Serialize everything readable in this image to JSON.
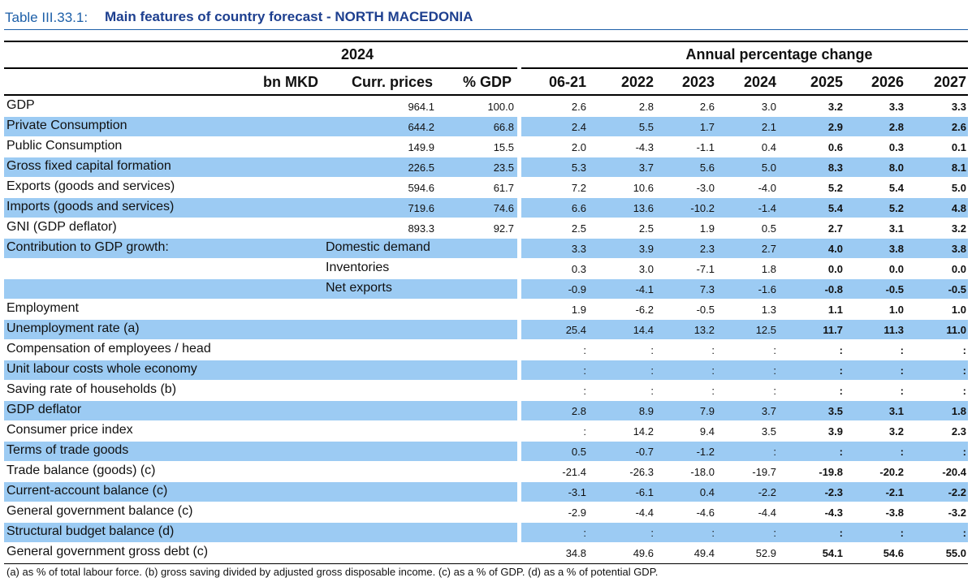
{
  "title_prefix": "Table III.33.1:",
  "title": "Main features of country forecast - NORTH MACEDONIA",
  "header": {
    "group_left": "2024",
    "group_right": "Annual percentage change",
    "columns": [
      "bn MKD",
      "Curr. prices",
      "% GDP",
      "06-21",
      "2022",
      "2023",
      "2024",
      "2025",
      "2026",
      "2027"
    ]
  },
  "table": {
    "rows": [
      {
        "label": "GDP",
        "curr": "964.1",
        "pct": "100.0",
        "values": [
          "2.6",
          "2.8",
          "2.6",
          "3.0",
          "3.2",
          "3.3",
          "3.3"
        ]
      },
      {
        "label": "Private Consumption",
        "curr": "644.2",
        "pct": "66.8",
        "values": [
          "2.4",
          "5.5",
          "1.7",
          "2.1",
          "2.9",
          "2.8",
          "2.6"
        ]
      },
      {
        "label": "Public Consumption",
        "curr": "149.9",
        "pct": "15.5",
        "values": [
          "2.0",
          "-4.3",
          "-1.1",
          "0.4",
          "0.6",
          "0.3",
          "0.1"
        ]
      },
      {
        "label": "Gross fixed capital formation",
        "curr": "226.5",
        "pct": "23.5",
        "values": [
          "5.3",
          "3.7",
          "5.6",
          "5.0",
          "8.3",
          "8.0",
          "8.1"
        ]
      },
      {
        "label": "Exports (goods and services)",
        "curr": "594.6",
        "pct": "61.7",
        "values": [
          "7.2",
          "10.6",
          "-3.0",
          "-4.0",
          "5.2",
          "5.4",
          "5.0"
        ]
      },
      {
        "label": "Imports (goods and services)",
        "curr": "719.6",
        "pct": "74.6",
        "values": [
          "6.6",
          "13.6",
          "-10.2",
          "-1.4",
          "5.4",
          "5.2",
          "4.8"
        ]
      },
      {
        "label": "GNI (GDP deflator)",
        "curr": "893.3",
        "pct": "92.7",
        "values": [
          "2.5",
          "2.5",
          "1.9",
          "0.5",
          "2.7",
          "3.1",
          "3.2"
        ]
      },
      {
        "label": "Contribution to GDP growth:",
        "sublabel": "Domestic demand",
        "values": [
          "3.3",
          "3.9",
          "2.3",
          "2.7",
          "4.0",
          "3.8",
          "3.8"
        ]
      },
      {
        "sublabel": "Inventories",
        "values": [
          "0.3",
          "3.0",
          "-7.1",
          "1.8",
          "0.0",
          "0.0",
          "0.0"
        ]
      },
      {
        "sublabel": "Net exports",
        "values": [
          "-0.9",
          "-4.1",
          "7.3",
          "-1.6",
          "-0.8",
          "-0.5",
          "-0.5"
        ]
      },
      {
        "label": "Employment",
        "values": [
          "1.9",
          "-6.2",
          "-0.5",
          "1.3",
          "1.1",
          "1.0",
          "1.0"
        ]
      },
      {
        "label": "Unemployment rate (a)",
        "values": [
          "25.4",
          "14.4",
          "13.2",
          "12.5",
          "11.7",
          "11.3",
          "11.0"
        ]
      },
      {
        "label": "Compensation of employees / head",
        "values": [
          ":",
          ":",
          ":",
          ":",
          ":",
          ":",
          ":"
        ]
      },
      {
        "label": "Unit labour costs whole economy",
        "values": [
          ":",
          ":",
          ":",
          ":",
          ":",
          ":",
          ":"
        ]
      },
      {
        "label": "Saving rate of households (b)",
        "values": [
          ":",
          ":",
          ":",
          ":",
          ":",
          ":",
          ":"
        ]
      },
      {
        "label": "GDP deflator",
        "values": [
          "2.8",
          "8.9",
          "7.9",
          "3.7",
          "3.5",
          "3.1",
          "1.8"
        ]
      },
      {
        "label": "Consumer price index",
        "values": [
          ":",
          "14.2",
          "9.4",
          "3.5",
          "3.9",
          "3.2",
          "2.3"
        ]
      },
      {
        "label": "Terms of trade goods",
        "values": [
          "0.5",
          "-0.7",
          "-1.2",
          ":",
          ":",
          ":",
          ":"
        ]
      },
      {
        "label": "Trade balance (goods) (c)",
        "values": [
          "-21.4",
          "-26.3",
          "-18.0",
          "-19.7",
          "-19.8",
          "-20.2",
          "-20.4"
        ]
      },
      {
        "label": "Current-account balance (c)",
        "values": [
          "-3.1",
          "-6.1",
          "0.4",
          "-2.2",
          "-2.3",
          "-2.1",
          "-2.2"
        ]
      },
      {
        "label": "General government balance (c)",
        "values": [
          "-2.9",
          "-4.4",
          "-4.6",
          "-4.4",
          "-4.3",
          "-3.8",
          "-3.2"
        ]
      },
      {
        "label": "Structural budget balance (d)",
        "values": [
          ":",
          ":",
          ":",
          ":",
          ":",
          ":",
          ":"
        ]
      },
      {
        "label": "General government gross debt (c)",
        "values": [
          "34.8",
          "49.6",
          "49.4",
          "52.9",
          "54.1",
          "54.6",
          "55.0"
        ]
      }
    ]
  },
  "footnote": "(a) as % of total labour force. (b) gross saving divided by adjusted gross disposable income.  (c) as a % of GDP. (d) as a % of potential GDP."
}
